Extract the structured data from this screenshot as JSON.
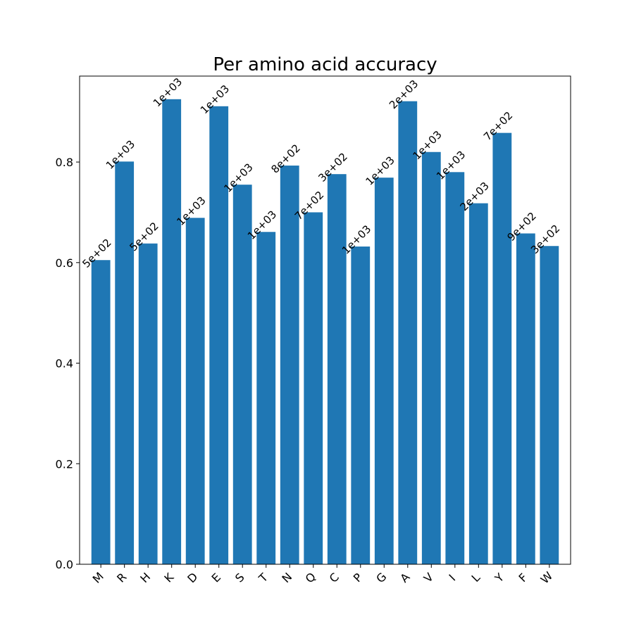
{
  "chart_data": {
    "type": "bar",
    "title": "Per amino acid accuracy",
    "xlabel": "",
    "ylabel": "",
    "categories": [
      "M",
      "R",
      "H",
      "K",
      "D",
      "E",
      "S",
      "T",
      "N",
      "Q",
      "C",
      "P",
      "G",
      "A",
      "V",
      "I",
      "L",
      "Y",
      "F",
      "W"
    ],
    "values": [
      0.605,
      0.801,
      0.638,
      0.925,
      0.689,
      0.911,
      0.755,
      0.661,
      0.793,
      0.7,
      0.776,
      0.632,
      0.769,
      0.921,
      0.82,
      0.78,
      0.718,
      0.858,
      0.658,
      0.633
    ],
    "bar_labels": [
      "5e+02",
      "1e+03",
      "5e+02",
      "1e+03",
      "1e+03",
      "1e+03",
      "1e+03",
      "1e+03",
      "8e+02",
      "7e+02",
      "3e+02",
      "1e+03",
      "1e+03",
      "2e+03",
      "1e+03",
      "1e+03",
      "2e+03",
      "7e+02",
      "9e+02",
      "3e+02"
    ],
    "ylim": [
      0,
      0.971
    ],
    "yticks": [
      0.0,
      0.2,
      0.4,
      0.6,
      0.8
    ],
    "ytick_labels": [
      "0.0",
      "0.2",
      "0.4",
      "0.6",
      "0.8"
    ],
    "bar_color": "#1f77b4",
    "grid": false,
    "legend": "none"
  }
}
